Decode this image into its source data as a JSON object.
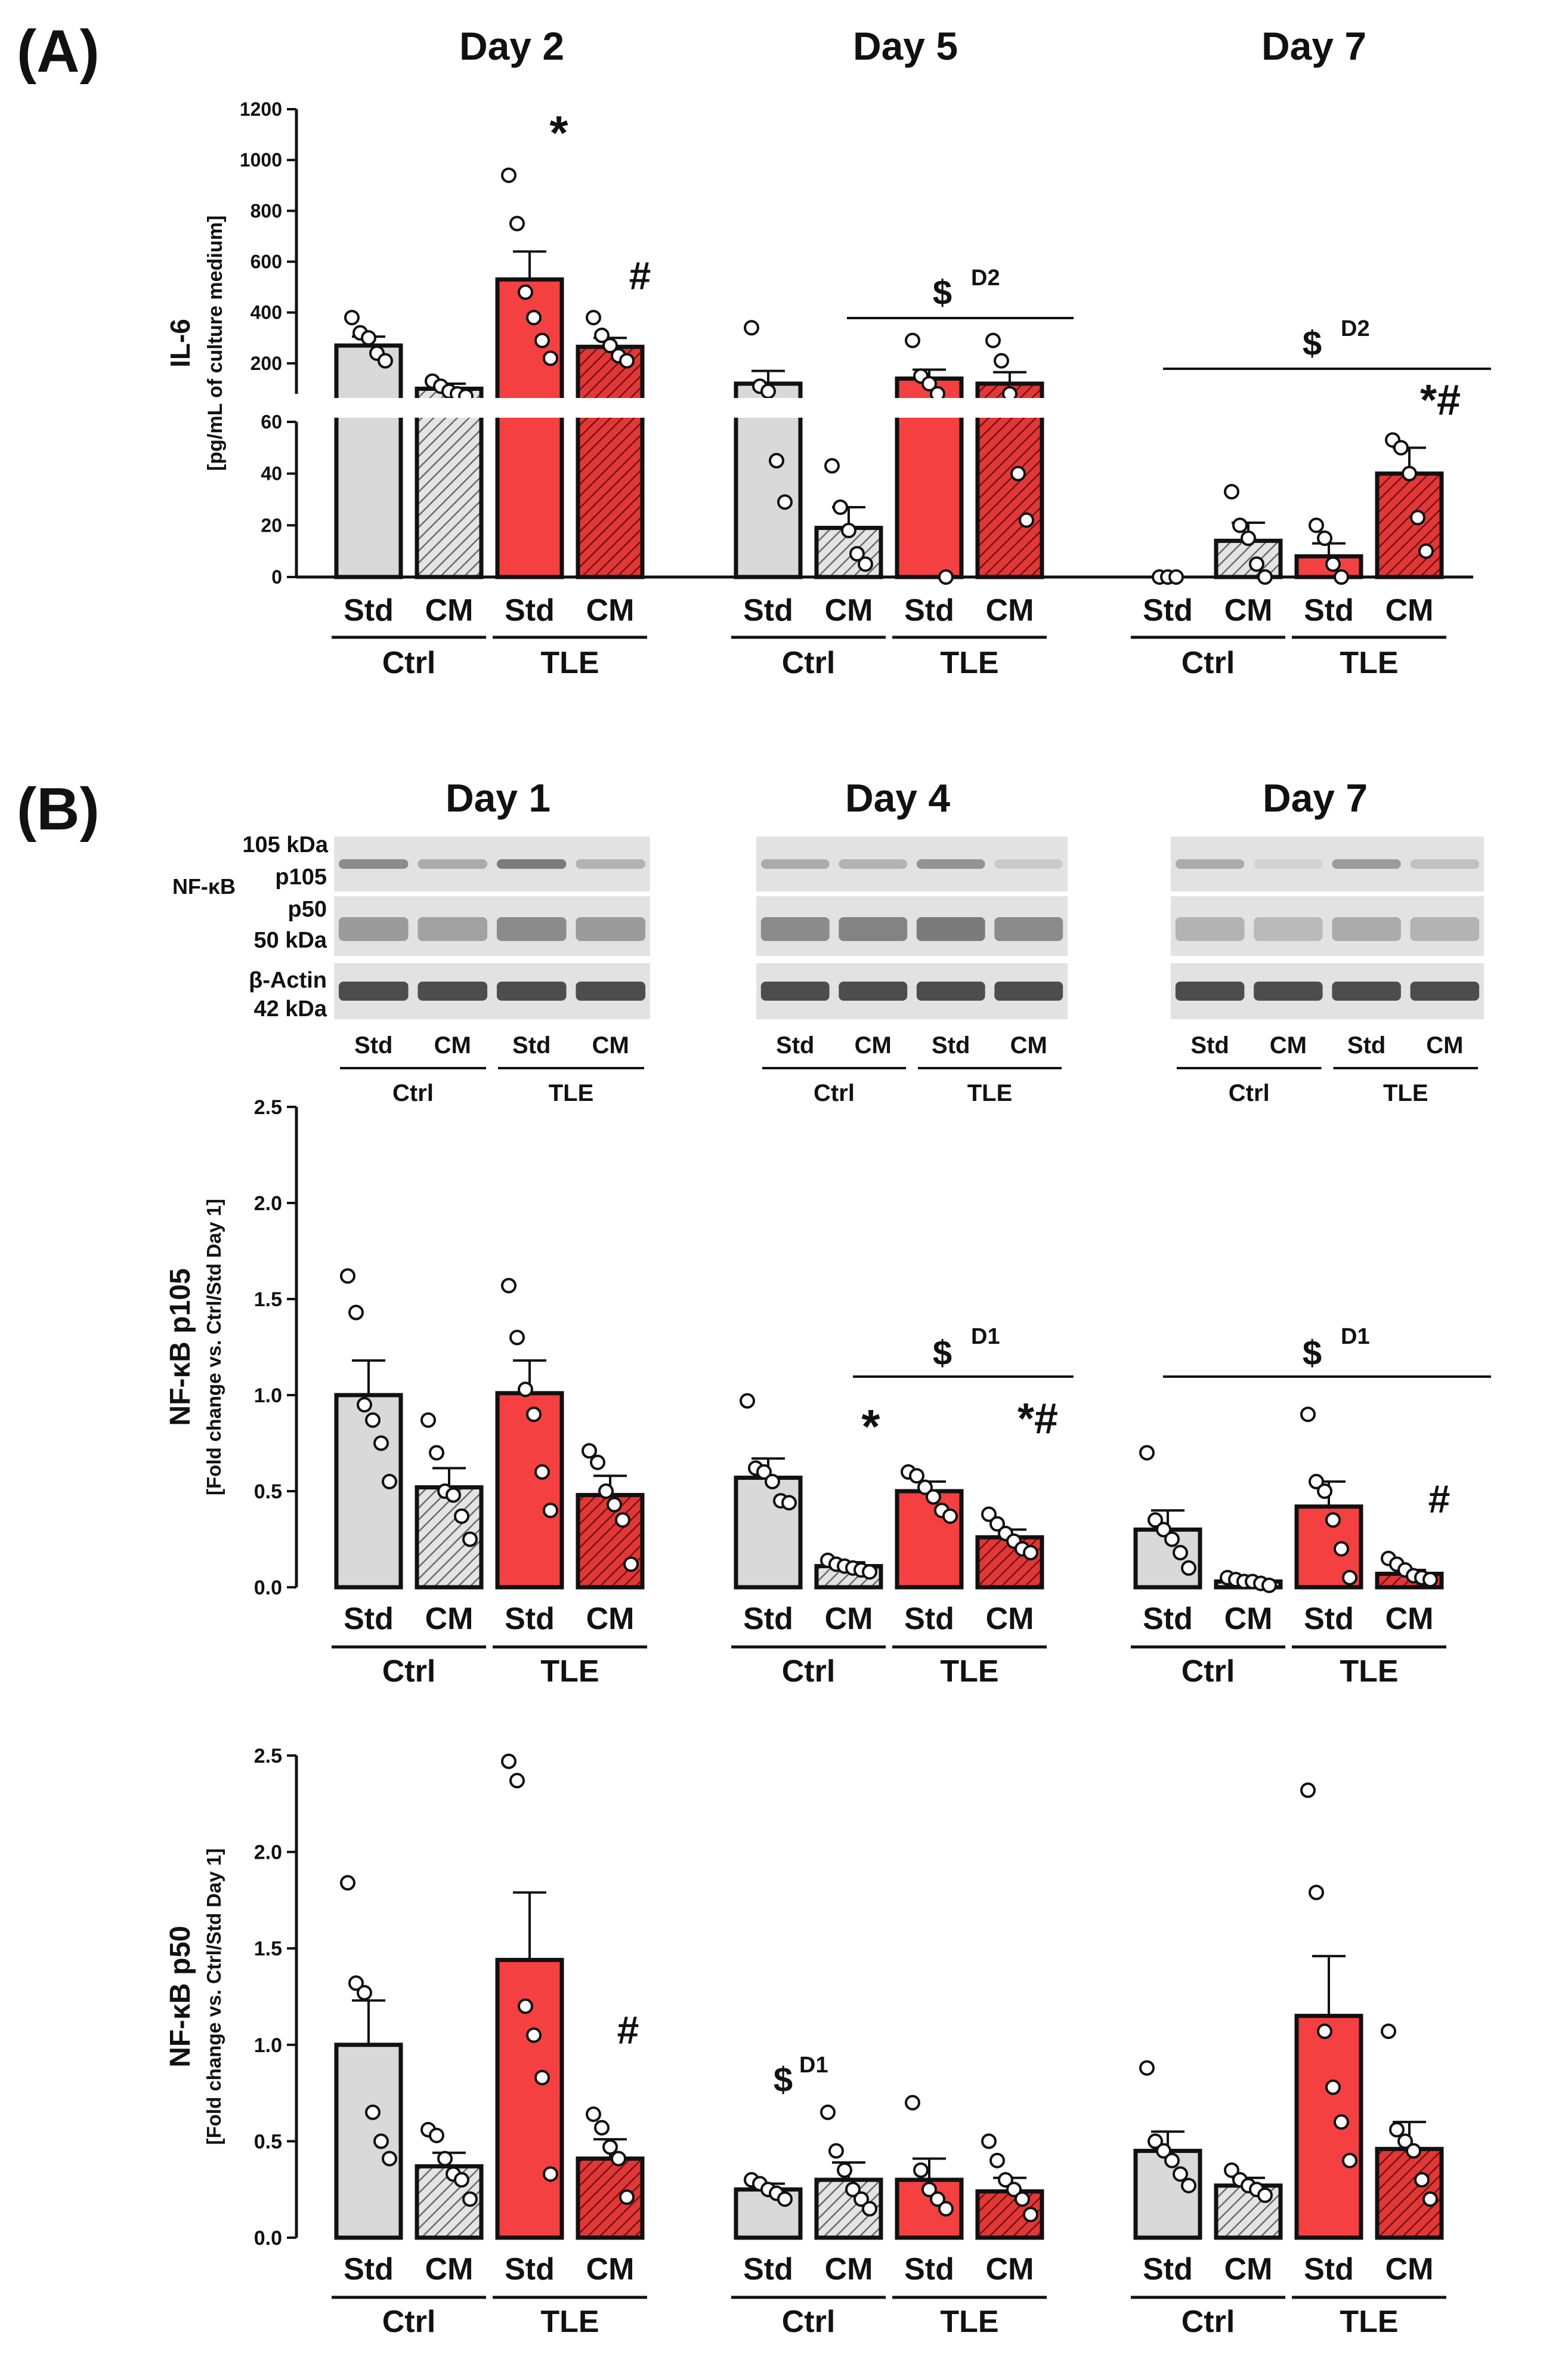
{
  "figure": {
    "panel_a_label": "(A)",
    "panel_b_label": "(B)"
  },
  "colors": {
    "ctrl_fill": "#d9d9d9",
    "tle_fill": "#f44040",
    "tle_hatch_stroke": "#7a1010",
    "ctrl_hatch_stroke": "#666666",
    "axis": "#111111",
    "blot_bg": "#e2e2e2",
    "blot_band": "#444444"
  },
  "western_blot": {
    "days": [
      "Day 1",
      "Day 4",
      "Day 7"
    ],
    "labels": {
      "p105_kda": "105 kDa",
      "nfkb": "NF-κB",
      "p105": "p105",
      "p50": "p50",
      "p50_kda": "50 kDa",
      "actin": "β-Actin",
      "actin_kda": "42 kDa"
    },
    "lane_labels": [
      "Std",
      "CM",
      "Std",
      "CM"
    ],
    "group_labels": [
      "Ctrl",
      "TLE"
    ],
    "p105_intensity": [
      [
        0.55,
        0.35,
        0.65,
        0.3
      ],
      [
        0.35,
        0.3,
        0.5,
        0.15
      ],
      [
        0.35,
        0.1,
        0.45,
        0.2
      ]
    ],
    "p50_intensity": [
      [
        0.45,
        0.4,
        0.55,
        0.45
      ],
      [
        0.55,
        0.6,
        0.65,
        0.55
      ],
      [
        0.3,
        0.25,
        0.35,
        0.3
      ]
    ],
    "actin_intensity": [
      [
        0.95,
        0.95,
        0.95,
        0.95
      ],
      [
        0.95,
        0.95,
        0.95,
        0.95
      ],
      [
        0.95,
        0.95,
        0.95,
        0.95
      ]
    ]
  },
  "chart_data": [
    {
      "type": "bar",
      "id": "il6",
      "panel": "A",
      "title": "",
      "day_titles": [
        "Day 2",
        "Day 5",
        "Day 7"
      ],
      "ylabel": "IL-6",
      "ylabel_sub": "[pg/mL of culture medium]",
      "axis_break": true,
      "ylim_lower": [
        0,
        60
      ],
      "ylim_upper": [
        80,
        1200
      ],
      "yticks_lower": [
        "0",
        "20",
        "40",
        "60"
      ],
      "yticks_upper": [
        "200",
        "400",
        "600",
        "800",
        "1000",
        "1200"
      ],
      "categories": [
        "Std",
        "CM",
        "Std",
        "CM"
      ],
      "groups": [
        "Ctrl",
        "TLE"
      ],
      "series": [
        {
          "name": "Day 2",
          "values": [
            270,
            100,
            530,
            265
          ],
          "sem": [
            35,
            20,
            110,
            35
          ],
          "points": [
            [
              380,
              320,
              300,
              240,
              210
            ],
            [
              130,
              110,
              90,
              80,
              70
            ],
            [
              940,
              750,
              480,
              380,
              290,
              220
            ],
            [
              380,
              310,
              270,
              230,
              210
            ]
          ]
        },
        {
          "name": "Day 5",
          "values": [
            120,
            19,
            140,
            120
          ],
          "sem": [
            50,
            8,
            35,
            45
          ],
          "points": [
            [
              340,
              110,
              90,
              45,
              29
            ],
            [
              43,
              27,
              18,
              9,
              5
            ],
            [
              290,
              150,
              120,
              80,
              0
            ],
            [
              290,
              210,
              80,
              40,
              22
            ]
          ]
        },
        {
          "name": "Day 7",
          "values": [
            0,
            14,
            8,
            40
          ],
          "sem": [
            0,
            7,
            5,
            10
          ],
          "points": [
            [
              0,
              0,
              0
            ],
            [
              33,
              20,
              15,
              5,
              0
            ],
            [
              20,
              15,
              5,
              0
            ],
            [
              53,
              50,
              40,
              23,
              10
            ]
          ]
        }
      ],
      "annotations": [
        "*",
        "#",
        "$",
        "D2",
        "$",
        "D2",
        "*#"
      ]
    },
    {
      "type": "bar",
      "id": "p105",
      "panel": "B",
      "title": "",
      "ylabel": "NF-κB p105",
      "ylabel_sub": "[Fold change vs. Ctrl/Std Day 1]",
      "ylim": [
        0,
        2.5
      ],
      "yticks": [
        "0.0",
        "0.5",
        "1.0",
        "1.5",
        "2.0",
        "2.5"
      ],
      "categories": [
        "Std",
        "CM",
        "Std",
        "CM"
      ],
      "groups": [
        "Ctrl",
        "TLE"
      ],
      "series": [
        {
          "name": "Day 1",
          "values": [
            1.0,
            0.52,
            1.01,
            0.48
          ],
          "sem": [
            0.18,
            0.1,
            0.17,
            0.1
          ],
          "points": [
            [
              1.62,
              1.43,
              0.95,
              0.87,
              0.75,
              0.55
            ],
            [
              0.87,
              0.7,
              0.5,
              0.48,
              0.37,
              0.25
            ],
            [
              1.57,
              1.3,
              1.03,
              0.9,
              0.6,
              0.4
            ],
            [
              0.71,
              0.65,
              0.5,
              0.43,
              0.35,
              0.12
            ]
          ]
        },
        {
          "name": "Day 4",
          "values": [
            0.57,
            0.11,
            0.5,
            0.26
          ],
          "sem": [
            0.1,
            0.02,
            0.05,
            0.04
          ],
          "points": [
            [
              0.97,
              0.62,
              0.6,
              0.55,
              0.45,
              0.44
            ],
            [
              0.14,
              0.12,
              0.11,
              0.1,
              0.09,
              0.08
            ],
            [
              0.6,
              0.58,
              0.52,
              0.47,
              0.4,
              0.37
            ],
            [
              0.38,
              0.33,
              0.28,
              0.24,
              0.2,
              0.18
            ]
          ]
        },
        {
          "name": "Day 7",
          "values": [
            0.3,
            0.03,
            0.42,
            0.07
          ],
          "sem": [
            0.1,
            0.01,
            0.13,
            0.02
          ],
          "points": [
            [
              0.7,
              0.35,
              0.3,
              0.25,
              0.18,
              0.1
            ],
            [
              0.05,
              0.04,
              0.03,
              0.03,
              0.02,
              0.01
            ],
            [
              0.9,
              0.55,
              0.5,
              0.35,
              0.2,
              0.05
            ],
            [
              0.15,
              0.12,
              0.09,
              0.06,
              0.05,
              0.04
            ]
          ]
        }
      ],
      "annotations": [
        "$",
        "D1",
        "*",
        "*#",
        "$",
        "D1",
        "#"
      ]
    },
    {
      "type": "bar",
      "id": "p50",
      "panel": "B",
      "title": "",
      "ylabel": "NF-κB p50",
      "ylabel_sub": "[Fold change vs. Ctrl/Std Day 1]",
      "ylim": [
        0,
        2.5
      ],
      "yticks": [
        "0.0",
        "0.5",
        "1.0",
        "1.5",
        "2.0",
        "2.5"
      ],
      "categories": [
        "Std",
        "CM",
        "Std",
        "CM"
      ],
      "groups": [
        "Ctrl",
        "TLE"
      ],
      "series": [
        {
          "name": "Day 1",
          "values": [
            1.0,
            0.37,
            1.44,
            0.41
          ],
          "sem": [
            0.23,
            0.07,
            0.35,
            0.1
          ],
          "points": [
            [
              1.84,
              1.32,
              1.27,
              0.65,
              0.5,
              0.41
            ],
            [
              0.56,
              0.53,
              0.41,
              0.33,
              0.3,
              0.2
            ],
            [
              2.47,
              2.37,
              1.2,
              1.05,
              0.83,
              0.33
            ],
            [
              0.64,
              0.57,
              0.47,
              0.41,
              0.21
            ]
          ]
        },
        {
          "name": "Day 4",
          "values": [
            0.25,
            0.3,
            0.3,
            0.24
          ],
          "sem": [
            0.03,
            0.09,
            0.11,
            0.07
          ],
          "points": [
            [
              0.3,
              0.28,
              0.25,
              0.23,
              0.2
            ],
            [
              0.65,
              0.45,
              0.35,
              0.25,
              0.2,
              0.15
            ],
            [
              0.7,
              0.35,
              0.25,
              0.2,
              0.15
            ],
            [
              0.5,
              0.4,
              0.3,
              0.25,
              0.2,
              0.12
            ]
          ]
        },
        {
          "name": "Day 7",
          "values": [
            0.45,
            0.27,
            1.15,
            0.46
          ],
          "sem": [
            0.1,
            0.04,
            0.31,
            0.14
          ],
          "points": [
            [
              0.88,
              0.5,
              0.45,
              0.4,
              0.33,
              0.27
            ],
            [
              0.35,
              0.3,
              0.27,
              0.25,
              0.22
            ],
            [
              2.32,
              1.79,
              1.07,
              0.78,
              0.6,
              0.4
            ],
            [
              1.07,
              0.56,
              0.5,
              0.45,
              0.3,
              0.2
            ]
          ]
        }
      ],
      "annotations": [
        "$",
        "D1",
        "#"
      ]
    }
  ]
}
